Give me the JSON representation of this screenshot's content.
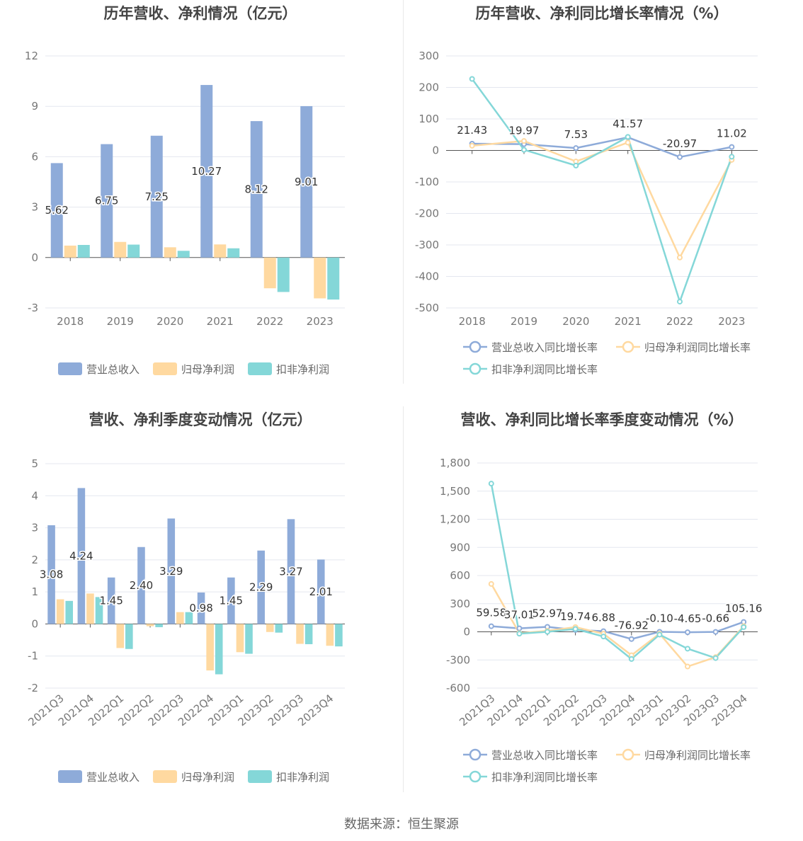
{
  "charts": [
    {
      "type": "bar",
      "title": "历年营收、净利情况（亿元）",
      "categories": [
        "2018",
        "2019",
        "2020",
        "2021",
        "2022",
        "2023"
      ],
      "ylim": [
        -3,
        12
      ],
      "yticks": [
        -3,
        0,
        3,
        6,
        9,
        12
      ],
      "series": [
        {
          "name": "营业总收入",
          "color": "#8eabd9",
          "values": [
            5.62,
            6.75,
            7.25,
            10.27,
            8.12,
            9.01
          ],
          "labels": [
            "5.62",
            "6.75",
            "7.25",
            "10.27",
            "8.12",
            "9.01"
          ]
        },
        {
          "name": "归母净利润",
          "color": "#ffd9a0",
          "values": [
            0.71,
            0.93,
            0.61,
            0.78,
            -1.83,
            -2.43
          ]
        },
        {
          "name": "扣非净利润",
          "color": "#84d7d8",
          "values": [
            0.75,
            0.77,
            0.4,
            0.55,
            -2.05,
            -2.5
          ]
        }
      ],
      "legend_position": "bottom"
    },
    {
      "type": "line",
      "title": "历年营收、净利同比增长率情况（%）",
      "categories": [
        "2018",
        "2019",
        "2020",
        "2021",
        "2022",
        "2023"
      ],
      "ylim": [
        -500,
        300
      ],
      "yticks": [
        -500,
        -400,
        -300,
        -200,
        -100,
        0,
        100,
        200,
        300
      ],
      "series": [
        {
          "name": "营业总收入同比增长率",
          "color": "#8eabd9",
          "values": [
            21.43,
            19.97,
            7.53,
            41.57,
            -20.97,
            11.02
          ],
          "labels": [
            "21.43",
            "19.97",
            "7.53",
            "41.57",
            "-20.97",
            "11.02"
          ]
        },
        {
          "name": "归母净利润同比增长率",
          "color": "#ffd9a0",
          "values": [
            15,
            30,
            -35,
            25,
            -340,
            -30
          ]
        },
        {
          "name": "扣非净利润同比增长率",
          "color": "#84d7d8",
          "values": [
            227,
            2,
            -48,
            43,
            -480,
            -20
          ]
        }
      ],
      "legend_position": "bottom"
    },
    {
      "type": "bar",
      "title": "营收、净利季度变动情况（亿元）",
      "categories": [
        "2021Q3",
        "2021Q4",
        "2022Q1",
        "2022Q2",
        "2022Q3",
        "2022Q4",
        "2023Q1",
        "2023Q2",
        "2023Q3",
        "2023Q4"
      ],
      "ylim": [
        -2,
        5
      ],
      "yticks": [
        -2,
        -1,
        0,
        1,
        2,
        3,
        4,
        5
      ],
      "series": [
        {
          "name": "营业总收入",
          "color": "#8eabd9",
          "values": [
            3.08,
            4.24,
            1.45,
            2.4,
            3.29,
            0.98,
            1.45,
            2.29,
            3.27,
            2.01
          ],
          "labels": [
            "3.08",
            "4.24",
            "1.45",
            "2.40",
            "3.29",
            "0.98",
            "1.45",
            "2.29",
            "3.27",
            "2.01"
          ]
        },
        {
          "name": "归母净利润",
          "color": "#ffd9a0",
          "values": [
            0.77,
            0.95,
            -0.75,
            -0.07,
            0.37,
            -1.45,
            -0.88,
            -0.25,
            -0.62,
            -0.68
          ]
        },
        {
          "name": "扣非净利润",
          "color": "#84d7d8",
          "values": [
            0.72,
            0.84,
            -0.78,
            -0.1,
            0.37,
            -1.57,
            -0.93,
            -0.27,
            -0.63,
            -0.7
          ]
        }
      ],
      "legend_position": "bottom"
    },
    {
      "type": "line",
      "title": "营收、净利同比增长率季度变动情况（%）",
      "categories": [
        "2021Q3",
        "2021Q4",
        "2022Q1",
        "2022Q2",
        "2022Q3",
        "2022Q4",
        "2023Q1",
        "2023Q2",
        "2023Q3",
        "2023Q4"
      ],
      "ylim": [
        -600,
        1800
      ],
      "yticks": [
        -600,
        -300,
        0,
        300,
        600,
        900,
        1200,
        1500,
        1800
      ],
      "ytick_labels": [
        "-600",
        "-300",
        "0",
        "300",
        "600",
        "900",
        "1,200",
        "1,500",
        "1,800"
      ],
      "series": [
        {
          "name": "营业总收入同比增长率",
          "color": "#8eabd9",
          "values": [
            59.58,
            37.01,
            52.97,
            19.74,
            6.88,
            -76.92,
            -0.1,
            -4.65,
            -0.66,
            105.16
          ],
          "labels": [
            "59.58",
            "37.01",
            "52.97",
            "19.74",
            "6.88",
            "-76.92",
            "-0.10",
            "-4.65",
            "-0.66",
            "105.16"
          ]
        },
        {
          "name": "归母净利润同比增长率",
          "color": "#ffd9a0",
          "values": [
            510,
            -15,
            10,
            50,
            -20,
            -250,
            -20,
            -370,
            -270,
            60
          ]
        },
        {
          "name": "扣非净利润同比增长率",
          "color": "#84d7d8",
          "values": [
            1580,
            -20,
            0,
            30,
            -50,
            -290,
            -30,
            -180,
            -280,
            50
          ]
        }
      ],
      "legend_position": "bottom"
    }
  ],
  "source": "数据来源：恒生聚源"
}
